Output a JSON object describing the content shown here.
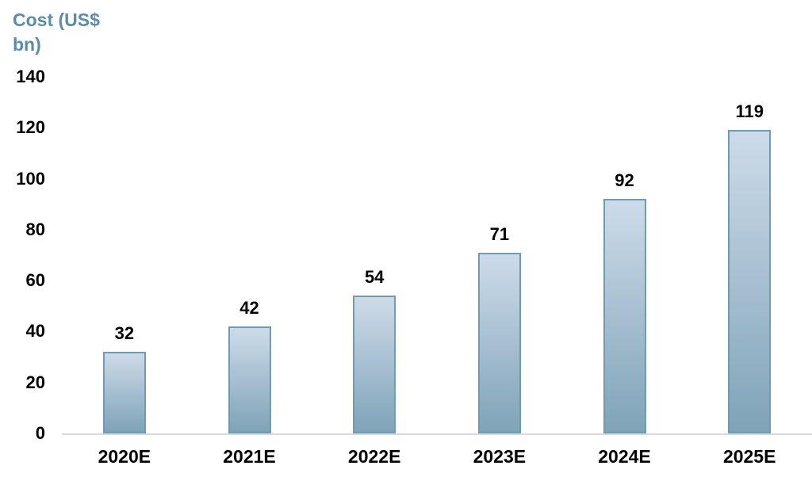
{
  "chart_data": {
    "type": "bar",
    "title": "",
    "ylabel": "Cost (US$ bn)",
    "ylabel_line1": "Cost (US$",
    "ylabel_line2": "bn)",
    "xlabel": "",
    "categories": [
      "2020E",
      "2021E",
      "2022E",
      "2023E",
      "2024E",
      "2025E"
    ],
    "values": [
      32,
      42,
      54,
      71,
      92,
      119
    ],
    "yticks": [
      0,
      20,
      40,
      60,
      80,
      100,
      120,
      140
    ],
    "ylim": [
      0,
      140
    ],
    "grid": false,
    "legend_position": "none",
    "colors": {
      "bar_gradient_top": "#CDDBE9",
      "bar_gradient_bottom": "#7FA3B8",
      "bar_border": "#6F9BB3",
      "axis_title": "#5B8CA8",
      "tick_label": "#000000",
      "data_label": "#000000",
      "axis_line": "#D9D9D9",
      "background": "#FFFFFF"
    }
  }
}
